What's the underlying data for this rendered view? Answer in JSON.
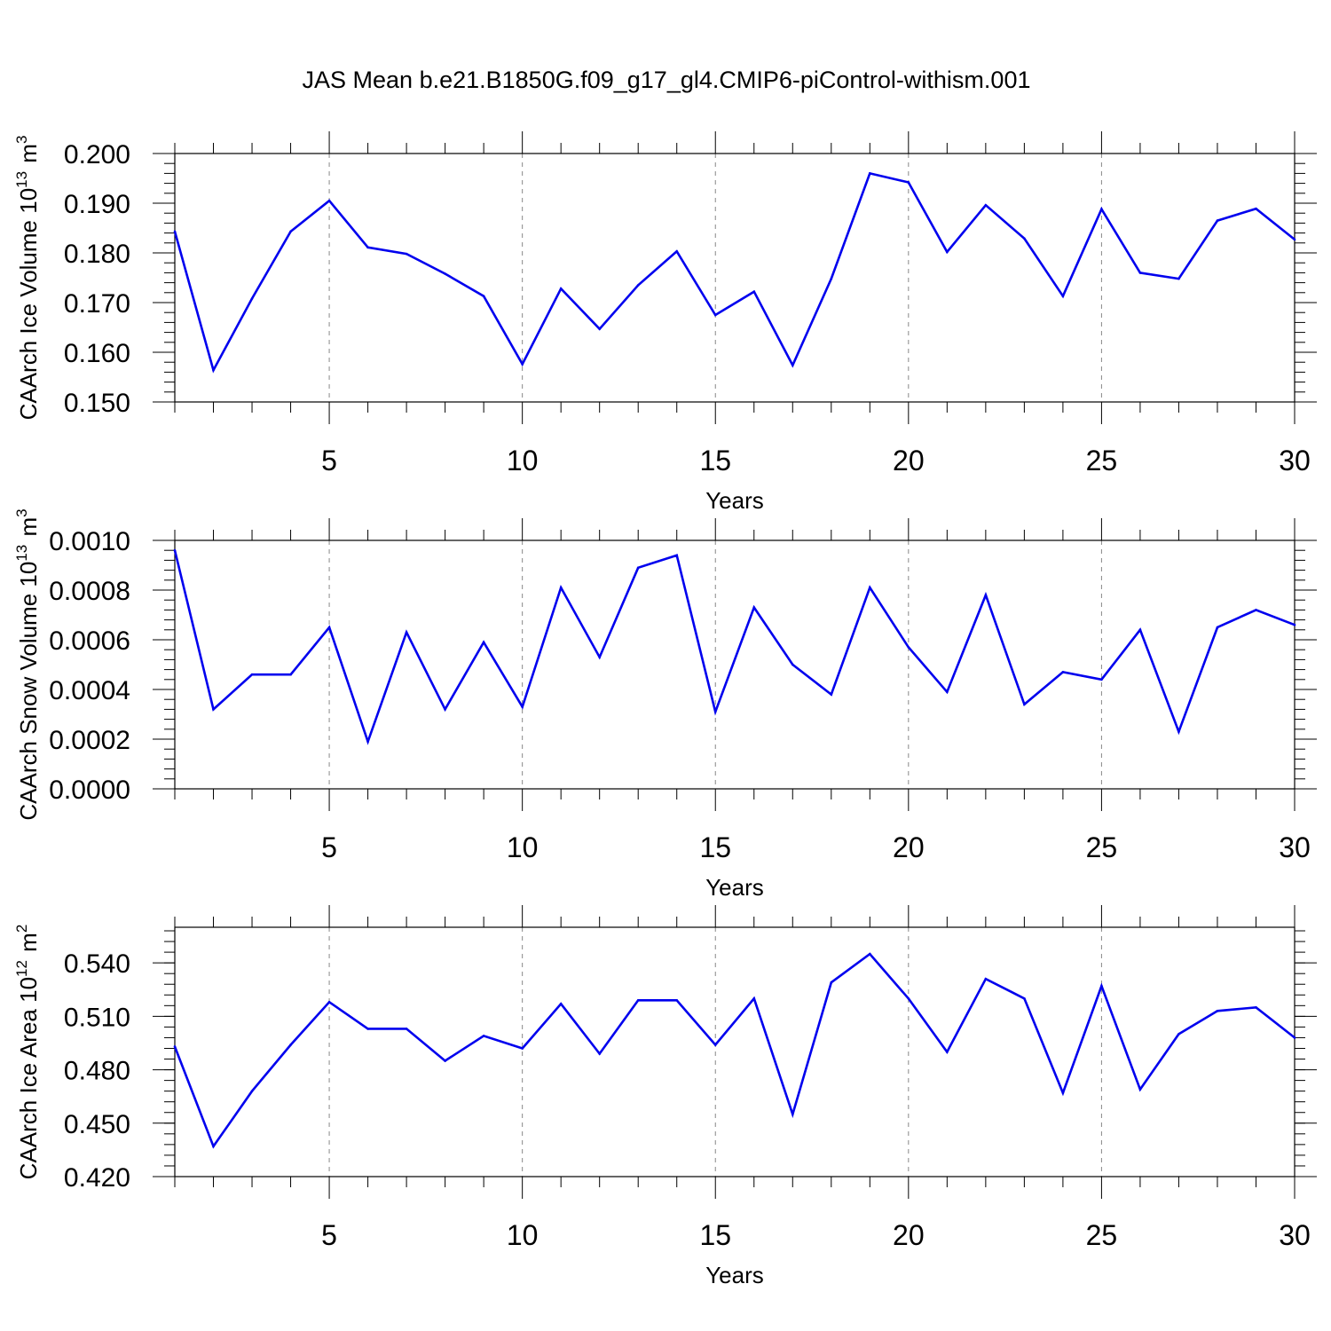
{
  "title": "JAS Mean b.e21.B1850G.f09_g17_gl4.CMIP6-piControl-withism.001",
  "colors": {
    "series": "#0000ee",
    "axis": "#000000",
    "grid": "#888888"
  },
  "chart_data": [
    {
      "type": "line",
      "ylabel": "CAArch Ice Volume 10",
      "ylabel_exp": "13",
      "ylabel_unit": "m",
      "ylabel_unit_exp": "3",
      "xlabel": "Years",
      "xlim": [
        1,
        30
      ],
      "ylim": [
        0.15,
        0.2
      ],
      "yticks": [
        0.15,
        0.16,
        0.17,
        0.18,
        0.19,
        0.2
      ],
      "ytick_labels": [
        "0.150",
        "0.160",
        "0.170",
        "0.180",
        "0.190",
        "0.200"
      ],
      "xticks": [
        5,
        10,
        15,
        20,
        25,
        30
      ],
      "xtick_labels": [
        "5",
        "10",
        "15",
        "20",
        "25",
        "30"
      ],
      "x": [
        1,
        2,
        3,
        4,
        5,
        6,
        7,
        8,
        9,
        10,
        11,
        12,
        13,
        14,
        15,
        16,
        17,
        18,
        19,
        20,
        21,
        22,
        23,
        24,
        25,
        26,
        27,
        28,
        29,
        30
      ],
      "values": [
        0.1843,
        0.1564,
        0.1708,
        0.1843,
        0.1905,
        0.1811,
        0.1798,
        0.1758,
        0.1713,
        0.1576,
        0.1728,
        0.1647,
        0.1735,
        0.1803,
        0.1675,
        0.1722,
        0.1574,
        0.1748,
        0.196,
        0.1942,
        0.1802,
        0.1896,
        0.1829,
        0.1713,
        0.1888,
        0.176,
        0.1748,
        0.1865,
        0.1889,
        0.1827
      ]
    },
    {
      "type": "line",
      "ylabel": "CAArch Snow Volume 10",
      "ylabel_exp": "13",
      "ylabel_unit": "m",
      "ylabel_unit_exp": "3",
      "xlabel": "Years",
      "xlim": [
        1,
        30
      ],
      "ylim": [
        0.0,
        0.001
      ],
      "yticks": [
        0.0,
        0.0002,
        0.0004,
        0.0006,
        0.0008,
        0.001
      ],
      "ytick_labels": [
        "0.0000",
        "0.0002",
        "0.0004",
        "0.0006",
        "0.0008",
        "0.0010"
      ],
      "xticks": [
        5,
        10,
        15,
        20,
        25,
        30
      ],
      "xtick_labels": [
        "5",
        "10",
        "15",
        "20",
        "25",
        "30"
      ],
      "x": [
        1,
        2,
        3,
        4,
        5,
        6,
        7,
        8,
        9,
        10,
        11,
        12,
        13,
        14,
        15,
        16,
        17,
        18,
        19,
        20,
        21,
        22,
        23,
        24,
        25,
        26,
        27,
        28,
        29,
        30
      ],
      "values": [
        0.00096,
        0.00032,
        0.00046,
        0.00046,
        0.00065,
        0.00019,
        0.00063,
        0.00032,
        0.00059,
        0.00033,
        0.00081,
        0.00053,
        0.00089,
        0.00094,
        0.00031,
        0.00073,
        0.0005,
        0.00038,
        0.00081,
        0.00057,
        0.00039,
        0.00078,
        0.00034,
        0.00047,
        0.00044,
        0.00064,
        0.00023,
        0.00065,
        0.00072,
        0.00066
      ]
    },
    {
      "type": "line",
      "ylabel": "CAArch Ice Area 10",
      "ylabel_exp": "12",
      "ylabel_unit": "m",
      "ylabel_unit_exp": "2",
      "xlabel": "Years",
      "xlim": [
        1,
        30
      ],
      "ylim": [
        0.42,
        0.56
      ],
      "yticks": [
        0.42,
        0.45,
        0.48,
        0.51,
        0.54
      ],
      "ytick_labels": [
        "0.420",
        "0.450",
        "0.480",
        "0.510",
        "0.540"
      ],
      "xticks": [
        5,
        10,
        15,
        20,
        25,
        30
      ],
      "xtick_labels": [
        "5",
        "10",
        "15",
        "20",
        "25",
        "30"
      ],
      "x": [
        1,
        2,
        3,
        4,
        5,
        6,
        7,
        8,
        9,
        10,
        11,
        12,
        13,
        14,
        15,
        16,
        17,
        18,
        19,
        20,
        21,
        22,
        23,
        24,
        25,
        26,
        27,
        28,
        29,
        30
      ],
      "values": [
        0.493,
        0.437,
        0.468,
        0.494,
        0.518,
        0.503,
        0.503,
        0.485,
        0.499,
        0.492,
        0.517,
        0.489,
        0.519,
        0.519,
        0.494,
        0.52,
        0.455,
        0.529,
        0.545,
        0.52,
        0.49,
        0.531,
        0.52,
        0.467,
        0.527,
        0.469,
        0.5,
        0.513,
        0.515,
        0.498
      ]
    }
  ]
}
